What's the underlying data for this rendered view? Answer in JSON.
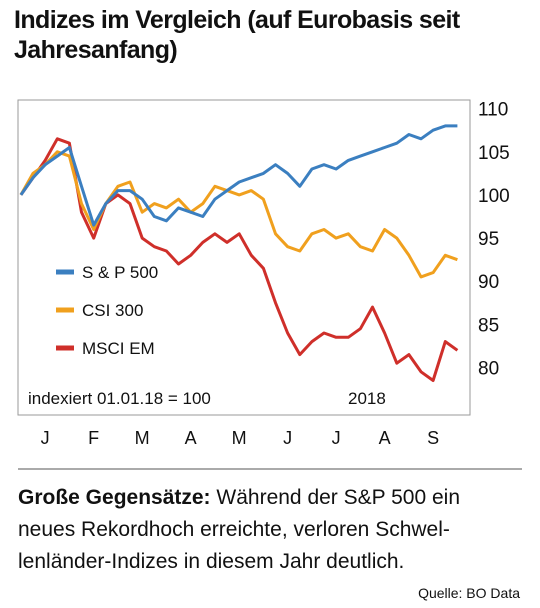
{
  "chart_data": {
    "type": "line",
    "title": "Indizes im Vergleich (auf Eurobasis seit Jahresanfang)",
    "x": [
      0,
      0.25,
      0.5,
      0.75,
      1,
      1.25,
      1.5,
      1.75,
      2,
      2.25,
      2.5,
      2.75,
      3,
      3.25,
      3.5,
      3.75,
      4,
      4.25,
      4.5,
      4.75,
      5,
      5.25,
      5.5,
      5.75,
      6,
      6.25,
      6.5,
      6.75,
      7,
      7.25,
      7.5,
      7.75,
      8,
      8.25,
      8.5,
      8.75,
      9
    ],
    "series": [
      {
        "name": "S & P 500",
        "color": "#3b7fc0",
        "values": [
          100,
          102,
          103.5,
          104.5,
          105.5,
          101,
          96.5,
          99,
          100.5,
          100.5,
          99.5,
          97.5,
          97,
          98.5,
          98,
          97.5,
          99.5,
          100.5,
          101.5,
          102,
          102.5,
          103.5,
          102.5,
          101,
          103,
          103.5,
          103,
          104,
          104.5,
          105,
          105.5,
          106,
          107,
          106.5,
          107.5,
          108,
          108
        ]
      },
      {
        "name": "CSI 300",
        "color": "#f0a01e",
        "values": [
          100,
          102.5,
          103.5,
          105,
          104.5,
          99,
          96,
          99,
          101,
          101.5,
          98,
          99,
          98.5,
          99.5,
          98,
          99,
          101,
          100.5,
          100,
          100.5,
          99.5,
          95.5,
          94,
          93.5,
          95.5,
          96,
          95,
          95.5,
          94,
          93.5,
          96,
          95,
          93,
          90.5,
          91,
          93,
          92.5
        ]
      },
      {
        "name": "MSCI EM",
        "color": "#cf2f2a",
        "values": [
          100,
          102,
          104,
          106.5,
          106,
          98,
          95,
          99,
          100,
          99,
          95,
          94,
          93.5,
          92,
          93,
          94.5,
          95.5,
          94.5,
          95.5,
          93,
          91.5,
          87.5,
          84,
          81.5,
          83,
          84,
          83.5,
          83.5,
          84.5,
          87,
          84,
          80.5,
          81.5,
          79.5,
          78.5,
          83,
          82
        ]
      }
    ],
    "xlim": [
      -0.06,
      9.26
    ],
    "xticks": [
      {
        "value": 0.5,
        "label": "J"
      },
      {
        "value": 1.5,
        "label": "F"
      },
      {
        "value": 2.5,
        "label": "M"
      },
      {
        "value": 3.5,
        "label": "A"
      },
      {
        "value": 4.5,
        "label": "M"
      },
      {
        "value": 5.5,
        "label": "J"
      },
      {
        "value": 6.5,
        "label": "J"
      },
      {
        "value": 7.5,
        "label": "A"
      },
      {
        "value": 8.5,
        "label": "S"
      }
    ],
    "ylim": [
      74.5,
      111
    ],
    "yticks": [
      80,
      85,
      90,
      95,
      100,
      105,
      110
    ],
    "grid": false,
    "annotations": [
      "indexiert 01.01.18 = 100",
      "2018"
    ],
    "caption": {
      "lead": "Große Gegensätze:",
      "lines": [
        "Während der S&P 500 ein",
        "neues Rekordhoch erreichte, verloren Schwel-",
        "lenländer-Indizes in diesem Jahr deutlich."
      ]
    },
    "source": "Quelle: BO Data"
  }
}
